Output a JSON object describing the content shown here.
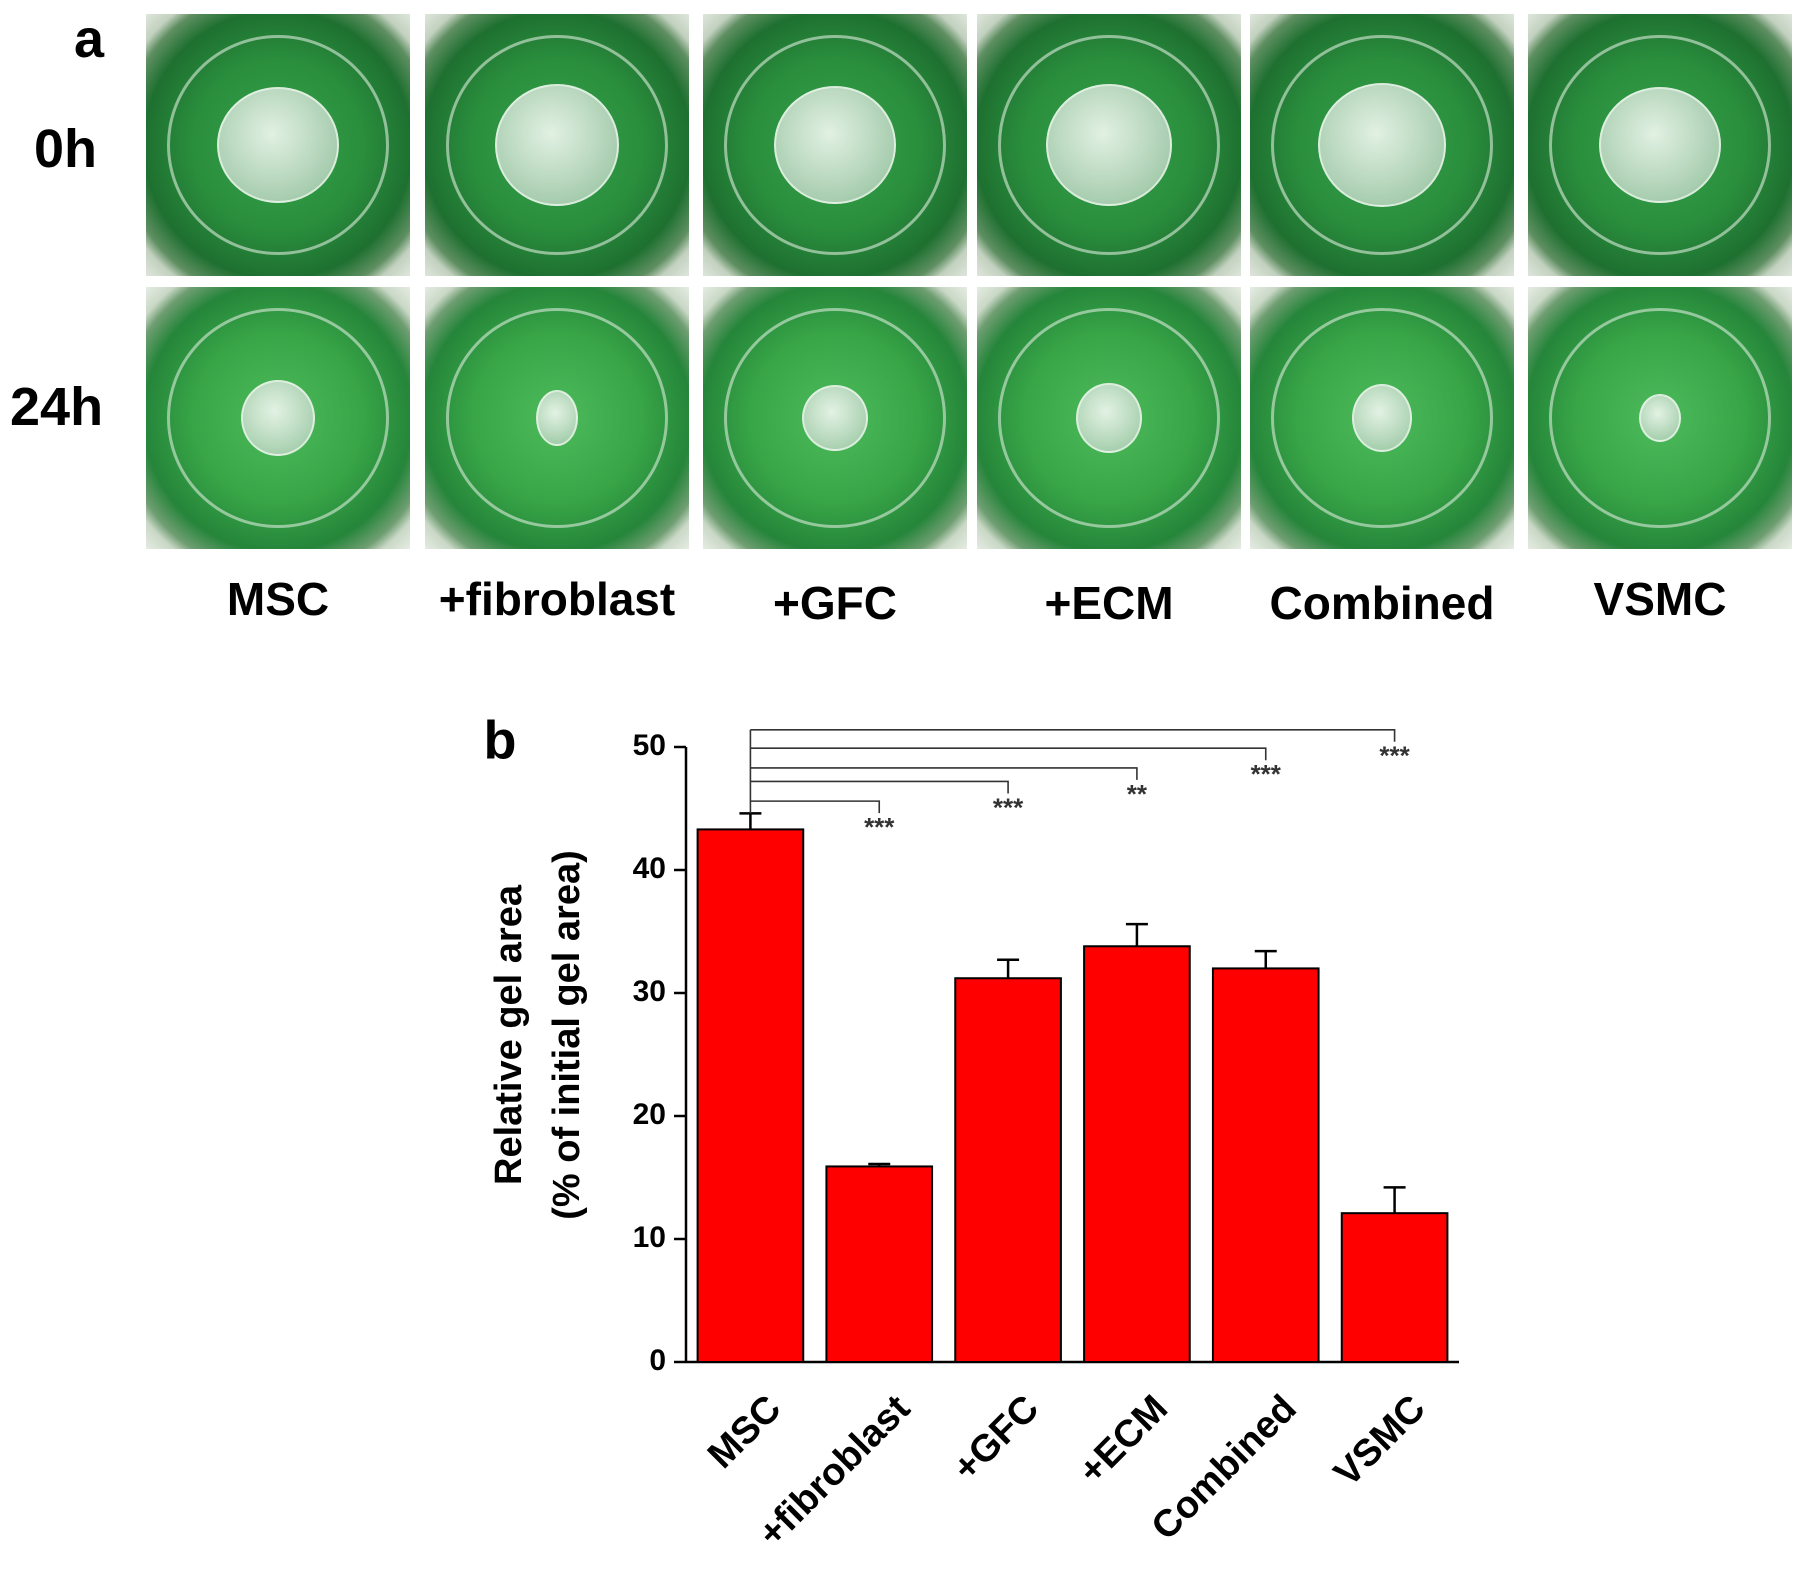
{
  "panel_a": {
    "label": "a",
    "rows": [
      "0h",
      "24h"
    ],
    "columns": [
      "MSC",
      "+fibroblast",
      "+GFC",
      "+ECM",
      "Combined",
      "VSMC"
    ]
  },
  "chart_data": {
    "type": "bar",
    "panel_label": "b",
    "y_label_lines": [
      "Relative gel area",
      "(% of initial gel area)"
    ],
    "categories": [
      "MSC",
      "+fibroblast",
      "+GFC",
      "+ECM",
      "Combined",
      "VSMC"
    ],
    "values": [
      43.3,
      15.9,
      31.2,
      33.8,
      32.0,
      12.1
    ],
    "errors": [
      1.3,
      0.2,
      1.5,
      1.8,
      1.4,
      2.1
    ],
    "significance": [
      null,
      "***",
      "***",
      "**",
      "***",
      "***"
    ],
    "color": "#ff0000",
    "ylim": [
      0,
      50
    ],
    "yticks": [
      0,
      10,
      20,
      30,
      40,
      50
    ]
  }
}
